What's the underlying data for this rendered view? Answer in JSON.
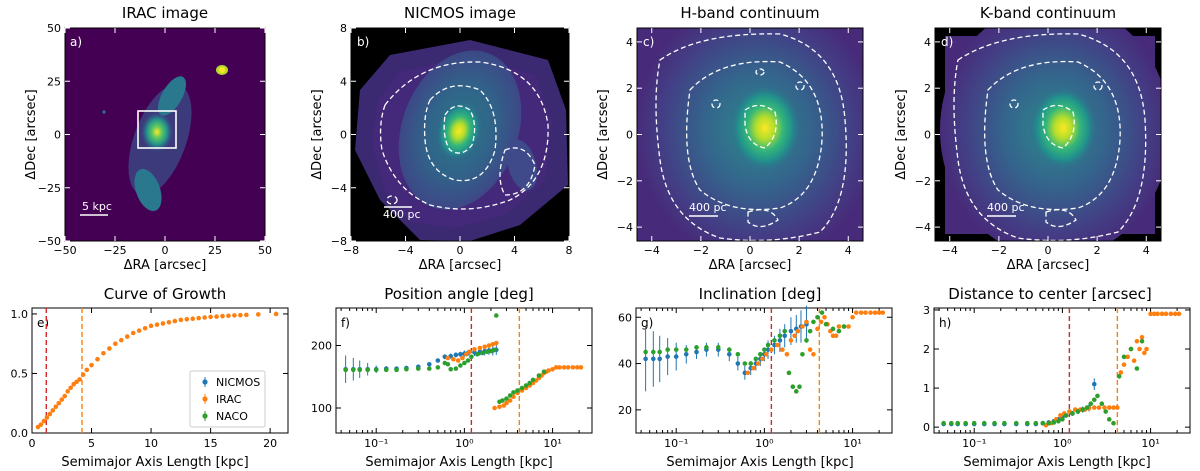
{
  "colors": {
    "nicmos": "#1f77b4",
    "irac": "#ff7f0e",
    "naco": "#2ca02c",
    "red_line": "#d62728",
    "orange_line": "#ff7f0e",
    "bg_dark": "#440154",
    "bg_mid": "#31688e",
    "bg_light": "#35b779",
    "peak": "#fde725"
  },
  "images": [
    {
      "panel": "a)",
      "title": "IRAC image",
      "xlabel": "ΔRA [arcsec]",
      "ylabel": "ΔDec [arcsec]",
      "xlim": [
        -50,
        50
      ],
      "ylim": [
        -50,
        50
      ],
      "xticks": [
        -50,
        -25,
        0,
        25,
        50
      ],
      "yticks": [
        -50,
        -25,
        0,
        25,
        50
      ],
      "scalebar": "5 kpc",
      "frame": "dark"
    },
    {
      "panel": "b)",
      "title": "NICMOS image",
      "xlabel": "ΔRA [arcsec]",
      "ylabel": "ΔDec [arcsec]",
      "xlim": [
        -8,
        8
      ],
      "ylim": [
        -8,
        8
      ],
      "xticks": [
        -8,
        -4,
        0,
        4,
        8
      ],
      "yticks": [
        -8,
        -4,
        0,
        4,
        8
      ],
      "scalebar": "400 pc",
      "frame": "masked"
    },
    {
      "panel": "c)",
      "title": "H-band continuum",
      "xlabel": "ΔRA [arcsec]",
      "ylabel": "ΔDec [arcsec]",
      "xlim": [
        -4.6,
        4.6
      ],
      "ylim": [
        -4.6,
        4.6
      ],
      "xticks": [
        -4,
        -2,
        0,
        2,
        4
      ],
      "yticks": [
        -4,
        -2,
        0,
        2,
        4
      ],
      "scalebar": "400 pc",
      "frame": "full"
    },
    {
      "panel": "d)",
      "title": "K-band continuum",
      "xlabel": "ΔRA [arcsec]",
      "ylabel": "ΔDec [arcsec]",
      "xlim": [
        -4.6,
        4.6
      ],
      "ylim": [
        -4.6,
        4.6
      ],
      "xticks": [
        -4,
        -2,
        0,
        2,
        4
      ],
      "yticks": [
        -4,
        -2,
        0,
        2,
        4
      ],
      "scalebar": "400 pc",
      "frame": "full"
    }
  ],
  "chart_data": [
    {
      "type": "scatter",
      "panel": "e)",
      "title": "Curve of Growth",
      "xlabel": "Semimajor Axis Length [kpc]",
      "ylabel": "",
      "xscale": "linear",
      "xlim": [
        0,
        21.5
      ],
      "ylim": [
        0,
        1.05
      ],
      "xticks": [
        0,
        5,
        10,
        15,
        20
      ],
      "xticklabels": [
        "0",
        "5",
        "10",
        "15",
        "20"
      ],
      "yticks": [
        0,
        0.5,
        1.0
      ],
      "yticklabels": [
        "0.0",
        "0.5",
        "1.0"
      ],
      "vlines": [
        {
          "x": 1.2,
          "color": "red"
        },
        {
          "x": 4.2,
          "color": "orange"
        }
      ],
      "legend": {
        "position": "lower-right",
        "entries": [
          "NICMOS",
          "IRAC",
          "NACO"
        ]
      },
      "series": [
        {
          "name": "IRAC",
          "color": "irac",
          "x": [
            0.5,
            0.75,
            1.0,
            1.25,
            1.5,
            1.75,
            2.0,
            2.25,
            2.5,
            2.75,
            3.0,
            3.25,
            3.5,
            3.75,
            4.0,
            4.3,
            4.6,
            5.0,
            5.5,
            6.0,
            6.5,
            7.0,
            7.5,
            8.0,
            8.5,
            9.0,
            9.5,
            10.0,
            10.5,
            11.0,
            11.5,
            12.0,
            12.5,
            13.0,
            13.5,
            14.0,
            14.5,
            15.0,
            15.5,
            16.0,
            16.5,
            17.0,
            17.5,
            18.0,
            19.0,
            20.5
          ],
          "y": [
            0.05,
            0.07,
            0.1,
            0.13,
            0.16,
            0.19,
            0.22,
            0.25,
            0.28,
            0.31,
            0.35,
            0.38,
            0.41,
            0.43,
            0.45,
            0.49,
            0.53,
            0.57,
            0.62,
            0.67,
            0.71,
            0.75,
            0.78,
            0.81,
            0.84,
            0.86,
            0.88,
            0.9,
            0.91,
            0.92,
            0.93,
            0.94,
            0.95,
            0.955,
            0.96,
            0.965,
            0.97,
            0.975,
            0.978,
            0.982,
            0.985,
            0.988,
            0.99,
            0.992,
            0.996,
            1.0
          ]
        }
      ]
    },
    {
      "type": "scatter",
      "panel": "f)",
      "title": "Position angle [deg]",
      "xlabel": "Semimajor Axis Length [kpc]",
      "ylabel": "",
      "xscale": "log",
      "xlim": [
        0.035,
        28
      ],
      "ylim": [
        60,
        260
      ],
      "xticks": [
        0.1,
        1,
        10
      ],
      "xticklabels": [
        "10⁻¹",
        "10⁰",
        "10¹"
      ],
      "yticks": [
        100,
        200
      ],
      "yticklabels": [
        "100",
        "200"
      ],
      "vlines": [
        {
          "x": 1.2,
          "color": "red"
        },
        {
          "x": 4.2,
          "color": "orange"
        }
      ],
      "series": [
        {
          "name": "NICMOS",
          "color": "nicmos",
          "x": [
            0.045,
            0.055,
            0.065,
            0.08,
            0.1,
            0.13,
            0.17,
            0.22,
            0.3,
            0.4,
            0.5,
            0.6,
            0.7,
            0.8,
            0.9,
            1.0,
            1.1,
            1.3,
            1.5,
            1.7,
            1.9,
            2.1,
            2.3
          ],
          "y": [
            162,
            162,
            162,
            162,
            162,
            163,
            163,
            164,
            166,
            170,
            176,
            182,
            183,
            185,
            186,
            187,
            188,
            189,
            190,
            191,
            192,
            192,
            193
          ],
          "err": [
            22,
            18,
            14,
            10,
            6,
            4,
            3,
            3,
            3,
            3,
            3,
            4,
            4,
            4,
            4,
            5,
            5,
            6,
            6,
            7,
            7,
            8,
            8
          ]
        },
        {
          "name": "IRAC",
          "color": "irac",
          "x": [
            0.65,
            0.75,
            0.85,
            0.95,
            1.05,
            1.15,
            1.3,
            1.5,
            1.7,
            1.9,
            2.1,
            2.3,
            2.2,
            2.5,
            2.8,
            3.0,
            3.3,
            3.6,
            4.0,
            4.5,
            5.0,
            5.5,
            6.0,
            6.5,
            7.0,
            7.5,
            8.0,
            8.5,
            9.0,
            10.0,
            11.0,
            12.0,
            13.5,
            15.0,
            17.0,
            19.0,
            21.0
          ],
          "y": [
            180,
            178,
            176,
            180,
            186,
            190,
            194,
            196,
            198,
            200,
            202,
            204,
            100,
            102,
            104,
            108,
            112,
            118,
            124,
            128,
            132,
            136,
            140,
            144,
            148,
            152,
            156,
            158,
            160,
            162,
            165,
            165,
            165,
            165,
            165,
            165,
            165
          ]
        },
        {
          "name": "NACO",
          "color": "naco",
          "x": [
            0.045,
            0.055,
            0.065,
            0.08,
            0.1,
            0.13,
            0.17,
            0.22,
            0.3,
            0.4,
            0.5,
            0.6,
            0.65,
            0.7,
            0.8,
            0.9,
            1.0,
            1.1,
            1.2,
            1.4,
            1.6,
            1.8,
            2.0,
            2.2,
            2.3,
            2.5,
            2.7,
            3.0,
            3.3,
            3.6,
            4.0,
            4.5,
            5.0,
            5.5,
            6.0,
            7.0,
            8.0
          ],
          "y": [
            161,
            161,
            161,
            161,
            161,
            161,
            161,
            162,
            163,
            163,
            165,
            172,
            170,
            162,
            163,
            168,
            172,
            176,
            182,
            186,
            188,
            190,
            191,
            193,
            248,
            110,
            112,
            115,
            120,
            125,
            128,
            132,
            136,
            140,
            145,
            152,
            158
          ]
        }
      ]
    },
    {
      "type": "scatter",
      "panel": "g)",
      "title": "Inclination [deg]",
      "xlabel": "Semimajor Axis Length [kpc]",
      "ylabel": "",
      "xscale": "log",
      "xlim": [
        0.035,
        28
      ],
      "ylim": [
        10,
        64
      ],
      "xticks": [
        0.1,
        1,
        10
      ],
      "xticklabels": [
        "10⁻¹",
        "10⁰",
        "10¹"
      ],
      "yticks": [
        20,
        40,
        60
      ],
      "yticklabels": [
        "20",
        "40",
        "60"
      ],
      "vlines": [
        {
          "x": 1.2,
          "color": "red"
        },
        {
          "x": 4.2,
          "color": "orange"
        }
      ],
      "series": [
        {
          "name": "NICMOS",
          "color": "nicmos",
          "x": [
            0.045,
            0.055,
            0.065,
            0.08,
            0.1,
            0.13,
            0.17,
            0.22,
            0.3,
            0.4,
            0.5,
            0.6,
            0.7,
            0.8,
            0.9,
            1.0,
            1.1,
            1.3,
            1.5,
            1.7,
            2.0,
            2.3,
            2.6,
            3.0
          ],
          "y": [
            42,
            42,
            42,
            43,
            43,
            44,
            45,
            46,
            46,
            44,
            40,
            36,
            38,
            40,
            42,
            44,
            46,
            48,
            50,
            52,
            54,
            55,
            56,
            57
          ],
          "err": [
            14,
            12,
            10,
            8,
            6,
            4,
            3,
            3,
            3,
            3,
            3,
            3,
            3,
            3,
            3,
            3,
            4,
            4,
            5,
            5,
            6,
            6,
            7,
            8
          ]
        },
        {
          "name": "IRAC",
          "color": "irac",
          "x": [
            0.65,
            0.75,
            0.85,
            0.95,
            1.05,
            1.2,
            1.4,
            1.6,
            1.8,
            2.0,
            2.2,
            2.4,
            2.7,
            3.0,
            3.3,
            3.6,
            4.0,
            4.4,
            4.8,
            5.2,
            5.6,
            6.0,
            6.5,
            7.0,
            8.0,
            9.0,
            10.0,
            11.0,
            12.5,
            14.0,
            16.0,
            18.0,
            20.0,
            22.0
          ],
          "y": [
            36,
            38,
            40,
            42,
            44,
            46,
            48,
            46,
            44,
            50,
            52,
            54,
            56,
            58,
            46,
            44,
            55,
            58,
            60,
            57,
            54,
            52,
            52,
            56,
            56,
            56,
            60,
            62,
            62,
            62,
            62,
            62,
            62,
            62
          ]
        },
        {
          "name": "NACO",
          "color": "naco",
          "x": [
            0.045,
            0.055,
            0.065,
            0.08,
            0.1,
            0.13,
            0.17,
            0.22,
            0.3,
            0.4,
            0.5,
            0.6,
            0.7,
            0.8,
            0.9,
            1.0,
            1.1,
            1.3,
            1.5,
            1.7,
            1.9,
            2.1,
            2.3,
            2.5,
            2.7,
            3.0,
            3.3,
            3.6,
            4.0,
            4.5,
            5.0,
            6.0,
            7.0,
            8.0
          ],
          "y": [
            45,
            45,
            45,
            46,
            46,
            46,
            47,
            47,
            47,
            46,
            44,
            40,
            40,
            42,
            44,
            46,
            48,
            50,
            52,
            54,
            36,
            30,
            28,
            30,
            44,
            50,
            54,
            58,
            60,
            62,
            57,
            55,
            54,
            56
          ]
        }
      ]
    },
    {
      "type": "scatter",
      "panel": "h)",
      "title": "Distance to center [arcsec]",
      "xlabel": "Semimajor Axis Length [kpc]",
      "ylabel": "",
      "xscale": "log",
      "xlim": [
        0.035,
        28
      ],
      "ylim": [
        -0.15,
        3.05
      ],
      "xticks": [
        0.1,
        1,
        10
      ],
      "xticklabels": [
        "10⁻¹",
        "10⁰",
        "10¹"
      ],
      "yticks": [
        0,
        1,
        2,
        3
      ],
      "yticklabels": [
        "0",
        "1",
        "2",
        "3"
      ],
      "vlines": [
        {
          "x": 1.2,
          "color": "red"
        },
        {
          "x": 4.2,
          "color": "orange"
        }
      ],
      "series": [
        {
          "name": "NICMOS",
          "color": "nicmos",
          "x": [
            0.045,
            0.055,
            0.065,
            0.08,
            0.1,
            0.13,
            0.17,
            0.22,
            0.3,
            0.4,
            0.5,
            0.6,
            0.7,
            0.8,
            0.9,
            1.0,
            1.1,
            1.3,
            1.5,
            1.7,
            2.0,
            2.3
          ],
          "y": [
            0.08,
            0.08,
            0.08,
            0.08,
            0.08,
            0.08,
            0.08,
            0.08,
            0.08,
            0.08,
            0.08,
            0.1,
            0.12,
            0.15,
            0.2,
            0.25,
            0.3,
            0.35,
            0.4,
            0.45,
            0.5,
            1.1
          ],
          "err": [
            0.03,
            0.03,
            0.03,
            0.03,
            0.03,
            0.03,
            0.03,
            0.03,
            0.03,
            0.03,
            0.03,
            0.03,
            0.03,
            0.04,
            0.05,
            0.05,
            0.06,
            0.06,
            0.07,
            0.08,
            0.1,
            0.15
          ]
        },
        {
          "name": "IRAC",
          "color": "irac",
          "x": [
            0.65,
            0.75,
            0.85,
            0.95,
            1.05,
            1.2,
            1.4,
            1.6,
            1.8,
            2.0,
            2.3,
            2.6,
            3.0,
            3.4,
            3.8,
            4.2,
            4.6,
            5.0,
            5.5,
            6.0,
            6.5,
            7.0,
            7.5,
            8.0,
            8.5,
            9.0,
            10.0,
            11.0,
            12.0,
            13.5,
            15.0,
            17.0,
            19.0,
            21.0
          ],
          "y": [
            0.05,
            0.1,
            0.2,
            0.3,
            0.35,
            0.4,
            0.45,
            0.45,
            0.45,
            0.48,
            0.5,
            0.5,
            0.5,
            0.5,
            0.5,
            0.5,
            1.4,
            1.6,
            1.8,
            2.0,
            1.7,
            2.2,
            2.0,
            2.3,
            1.9,
            2.0,
            2.9,
            2.9,
            2.9,
            2.9,
            2.9,
            2.9,
            2.9,
            2.9
          ]
        },
        {
          "name": "NACO",
          "color": "naco",
          "x": [
            0.045,
            0.055,
            0.065,
            0.08,
            0.1,
            0.13,
            0.17,
            0.22,
            0.3,
            0.4,
            0.5,
            0.6,
            0.7,
            0.8,
            0.9,
            1.0,
            1.1,
            1.3,
            1.5,
            1.7,
            1.9,
            2.1,
            2.3,
            2.5,
            2.8,
            3.1,
            3.4,
            3.8,
            4.4,
            5.0,
            6.0,
            7.0,
            8.0
          ],
          "y": [
            0.1,
            0.1,
            0.1,
            0.1,
            0.1,
            0.1,
            0.1,
            0.1,
            0.1,
            0.1,
            0.1,
            0.1,
            0.1,
            0.12,
            0.15,
            0.2,
            0.3,
            0.35,
            0.4,
            0.45,
            0.5,
            0.6,
            0.7,
            0.8,
            0.6,
            0.4,
            0.2,
            0.1,
            1.3,
            1.8,
            2.0,
            1.5,
            2.2
          ]
        }
      ]
    }
  ]
}
